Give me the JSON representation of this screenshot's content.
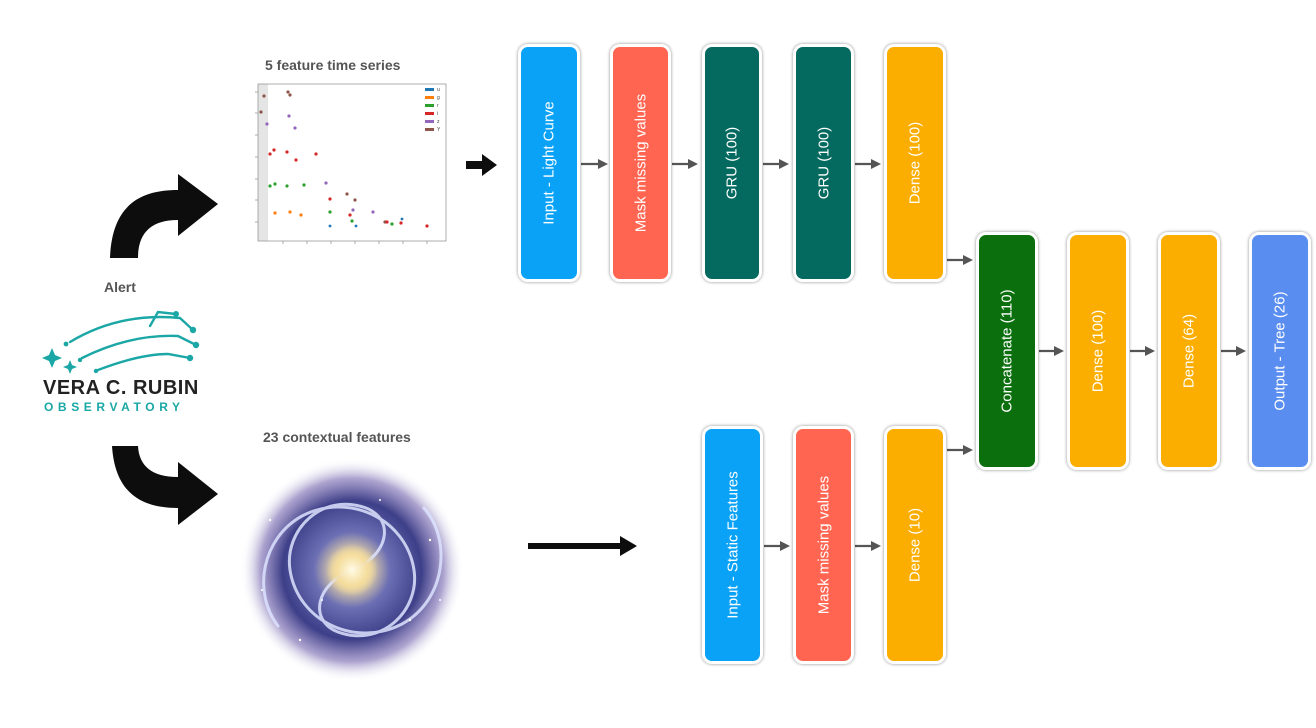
{
  "labels": {
    "time_series": "5 feature time series",
    "alert": "Alert",
    "contextual": "23 contextual features"
  },
  "logo": {
    "line1": "VERA C. RUBIN",
    "line2": "OBSERVATORY"
  },
  "plot_legend": [
    "u",
    "g",
    "r",
    "i",
    "z",
    "Y"
  ],
  "colors": {
    "input": "#0aa2f6",
    "mask": "#ff6550",
    "gru": "#046a5f",
    "dense": "#fbad00",
    "concat": "#0a6f0c",
    "output": "#5a8df0",
    "rubin_teal": "#1aa7a5"
  },
  "network": {
    "top": {
      "input": "Input - Light Curve",
      "mask": "Mask missing values",
      "gru1": "GRU (100)",
      "gru2": "GRU (100)",
      "dense": "Dense (100)"
    },
    "bottom": {
      "input": "Input - Static Features",
      "mask": "Mask missing values",
      "dense": "Dense (10)"
    },
    "merge": {
      "concat": "Concatenate (110)",
      "dense1": "Dense (100)",
      "dense2": "Dense (64)",
      "output": "Output - Tree (26)"
    }
  }
}
